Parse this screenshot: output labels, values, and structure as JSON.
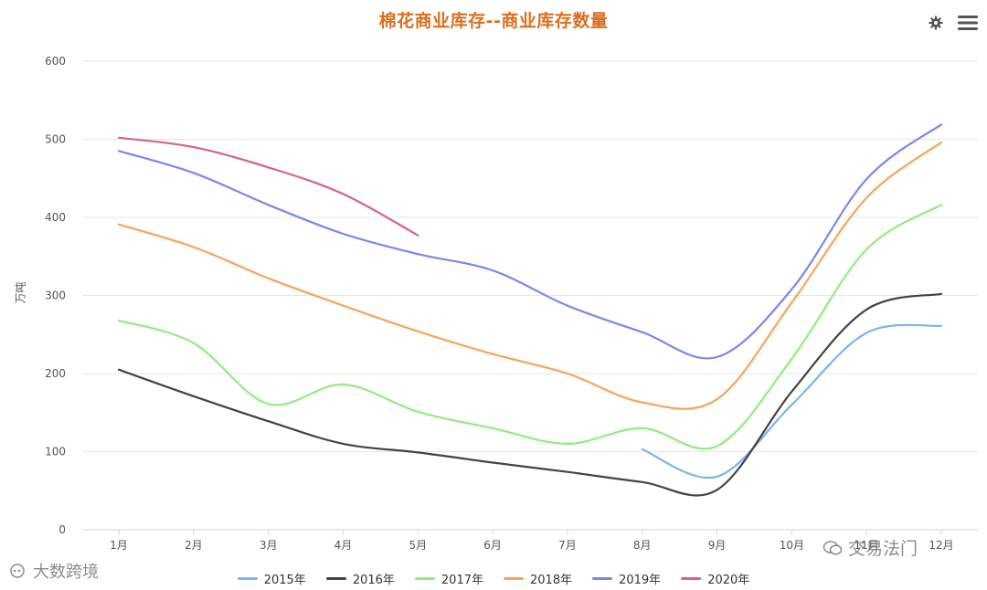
{
  "title": "棉花商业库存--商业库存数量",
  "toolbar": {
    "settings_icon": "gear-icon",
    "menu_icon": "hamburger-menu-icon"
  },
  "y_unit_label": "万吨",
  "watermarks": {
    "left": "大数跨境",
    "right": "交易法门"
  },
  "chart_data": {
    "type": "line",
    "title": "棉花商业库存--商业库存数量",
    "ylabel": "万吨",
    "xlabel": "",
    "categories": [
      "1月",
      "2月",
      "3月",
      "4月",
      "5月",
      "6月",
      "7月",
      "8月",
      "9月",
      "10月",
      "11月",
      "12月"
    ],
    "ylim": [
      0,
      600
    ],
    "yticks": [
      0,
      100,
      200,
      300,
      400,
      500,
      600
    ],
    "grid": true,
    "legend_position": "bottom",
    "series": [
      {
        "name": "2015年",
        "color": "#7cb5ec",
        "values": [
          null,
          null,
          null,
          null,
          null,
          null,
          null,
          103,
          68,
          160,
          252,
          261
        ]
      },
      {
        "name": "2016年",
        "color": "#434348",
        "values": [
          205,
          171,
          139,
          110,
          99,
          86,
          74,
          61,
          51,
          177,
          282,
          302
        ]
      },
      {
        "name": "2017年",
        "color": "#90ed7d",
        "values": [
          268,
          239,
          161,
          186,
          151,
          130,
          110,
          130,
          107,
          219,
          359,
          416
        ]
      },
      {
        "name": "2018年",
        "color": "#f7a35c",
        "values": [
          391,
          362,
          322,
          287,
          254,
          225,
          200,
          163,
          167,
          291,
          425,
          496
        ]
      },
      {
        "name": "2019年",
        "color": "#8085e9",
        "values": [
          485,
          457,
          416,
          379,
          353,
          332,
          287,
          253,
          221,
          308,
          449,
          519
        ]
      },
      {
        "name": "2020年",
        "color": "#d8628a",
        "values": [
          502,
          490,
          464,
          430,
          377,
          null,
          null,
          null,
          null,
          null,
          null,
          null
        ]
      }
    ]
  }
}
